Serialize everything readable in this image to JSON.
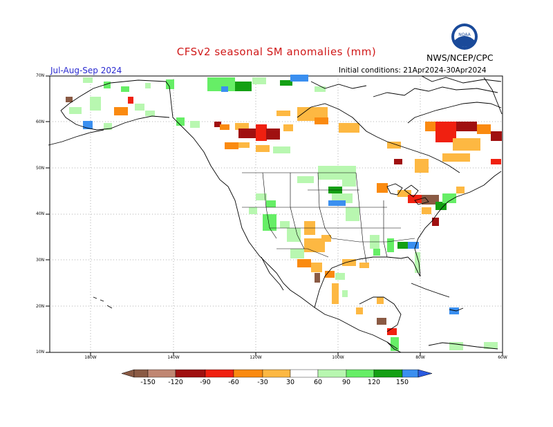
{
  "header": {
    "title": "CFSv2 seasonal SM anomalies (mm)",
    "credit": "NWS/NCEP/CPC",
    "period": "Jul-Aug-Sep 2024",
    "initial_conditions": "Initial conditions: 21Apr2024-30Apr2024"
  },
  "map": {
    "lat_labels": [
      "70N",
      "60N",
      "50N",
      "40N",
      "30N",
      "20N",
      "10N"
    ],
    "lon_labels": [
      "180W",
      "140W",
      "120W",
      "100W",
      "80W",
      "60W"
    ]
  },
  "colorbar": {
    "ticks": [
      "-150",
      "-120",
      "-90",
      "-60",
      "-30",
      "30",
      "60",
      "90",
      "120",
      "150"
    ],
    "colors": [
      "#8a5a44",
      "#c08672",
      "#a01010",
      "#f02010",
      "#fa8a10",
      "#fdb842",
      "#ffffff",
      "#b8f7b0",
      "#66ee66",
      "#14a014",
      "#3a8ff0",
      "#2a5ae0"
    ]
  },
  "logo": {
    "text": "NOAA"
  }
}
